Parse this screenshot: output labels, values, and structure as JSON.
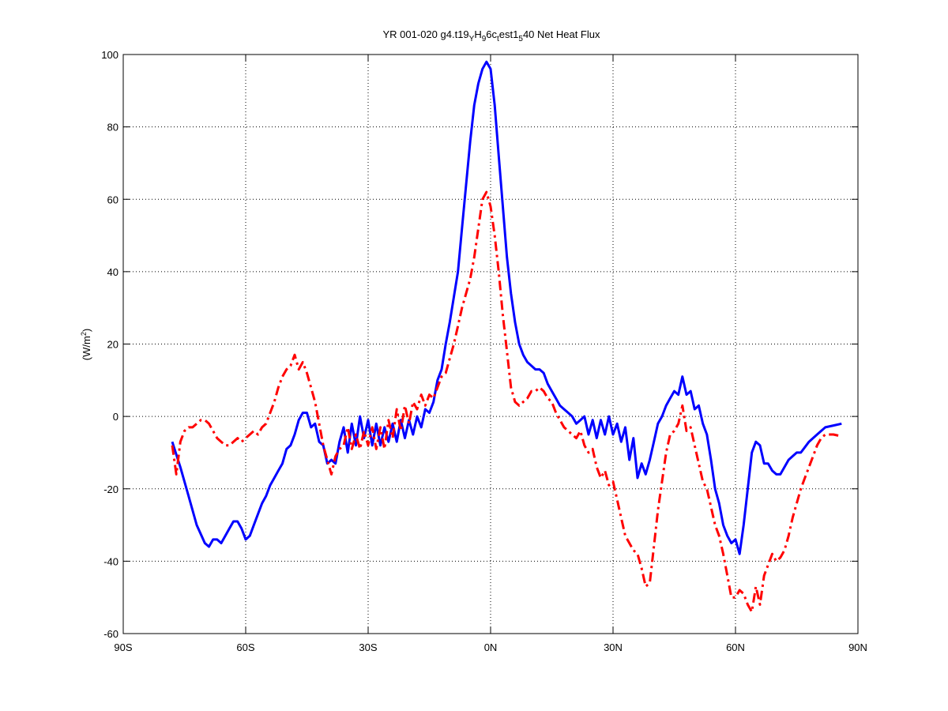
{
  "chart_data": {
    "type": "line",
    "title": "YR 001-020 g4.t19_YH_96c_test1_540    Net Heat Flux",
    "title_parts": {
      "prefix": "YR 001-020 g4.t19",
      "sub1": "Y",
      "mid1": "H",
      "sub2": "9",
      "mid2": "6c",
      "sub3": "t",
      "mid3": "est1",
      "sub4": "5",
      "suffix": "40    Net Heat Flux"
    },
    "xlabel": "",
    "ylabel": "(W/m²)",
    "ylabel_parts": {
      "prefix": "(W/m",
      "sup": "2",
      "suffix": ")"
    },
    "xlim": [
      -90,
      90
    ],
    "ylim": [
      -60,
      100
    ],
    "grid": true,
    "x_ticks": [
      -90,
      -60,
      -30,
      0,
      30,
      60,
      90
    ],
    "x_tick_labels": [
      "90S",
      "60S",
      "30S",
      "0N",
      "30N",
      "60N",
      "90N"
    ],
    "y_ticks": [
      -60,
      -40,
      -20,
      0,
      20,
      40,
      60,
      80,
      100
    ],
    "y_tick_labels": [
      "-60",
      "-40",
      "-20",
      "0",
      "20",
      "40",
      "60",
      "80",
      "100"
    ],
    "series": [
      {
        "color": "#0000ff",
        "style": "solid",
        "points": [
          [
            -78,
            -7
          ],
          [
            -76,
            -14
          ],
          [
            -74,
            -22
          ],
          [
            -72,
            -30
          ],
          [
            -70,
            -35
          ],
          [
            -69,
            -36
          ],
          [
            -68,
            -34
          ],
          [
            -67,
            -34
          ],
          [
            -66,
            -35
          ],
          [
            -65,
            -33
          ],
          [
            -64,
            -31
          ],
          [
            -63,
            -29
          ],
          [
            -62,
            -29
          ],
          [
            -61,
            -31
          ],
          [
            -60,
            -34
          ],
          [
            -59,
            -33
          ],
          [
            -58,
            -30
          ],
          [
            -57,
            -27
          ],
          [
            -56,
            -24
          ],
          [
            -55,
            -22
          ],
          [
            -54,
            -19
          ],
          [
            -53,
            -17
          ],
          [
            -52,
            -15
          ],
          [
            -51,
            -13
          ],
          [
            -50,
            -9
          ],
          [
            -49,
            -8
          ],
          [
            -48,
            -5
          ],
          [
            -47,
            -1
          ],
          [
            -46,
            1
          ],
          [
            -45,
            1
          ],
          [
            -44,
            -3
          ],
          [
            -43,
            -2
          ],
          [
            -42,
            -7
          ],
          [
            -41,
            -8
          ],
          [
            -40,
            -13
          ],
          [
            -39,
            -12
          ],
          [
            -38,
            -13
          ],
          [
            -37,
            -7
          ],
          [
            -36,
            -3
          ],
          [
            -35,
            -10
          ],
          [
            -34,
            -2
          ],
          [
            -33,
            -8
          ],
          [
            -32,
            0
          ],
          [
            -31,
            -6
          ],
          [
            -30,
            -1
          ],
          [
            -29,
            -8
          ],
          [
            -28,
            -2
          ],
          [
            -27,
            -8
          ],
          [
            -26,
            -3
          ],
          [
            -25,
            -7
          ],
          [
            -24,
            -2
          ],
          [
            -23,
            -7
          ],
          [
            -22,
            -1
          ],
          [
            -21,
            -6
          ],
          [
            -20,
            -1
          ],
          [
            -19,
            -5
          ],
          [
            -18,
            0
          ],
          [
            -17,
            -3
          ],
          [
            -16,
            2
          ],
          [
            -15,
            1
          ],
          [
            -14,
            4
          ],
          [
            -13,
            10
          ],
          [
            -12,
            13
          ],
          [
            -11,
            20
          ],
          [
            -10,
            26
          ],
          [
            -9,
            33
          ],
          [
            -8,
            40
          ],
          [
            -7,
            52
          ],
          [
            -6,
            64
          ],
          [
            -5,
            76
          ],
          [
            -4,
            86
          ],
          [
            -3,
            92
          ],
          [
            -2,
            96
          ],
          [
            -1,
            98
          ],
          [
            0,
            96
          ],
          [
            1,
            86
          ],
          [
            2,
            72
          ],
          [
            3,
            58
          ],
          [
            4,
            44
          ],
          [
            5,
            34
          ],
          [
            6,
            26
          ],
          [
            7,
            20
          ],
          [
            8,
            17
          ],
          [
            9,
            15
          ],
          [
            10,
            14
          ],
          [
            11,
            13
          ],
          [
            12,
            13
          ],
          [
            13,
            12
          ],
          [
            14,
            9
          ],
          [
            15,
            7
          ],
          [
            16,
            5
          ],
          [
            17,
            3
          ],
          [
            18,
            2
          ],
          [
            19,
            1
          ],
          [
            20,
            0
          ],
          [
            21,
            -2
          ],
          [
            22,
            -1
          ],
          [
            23,
            0
          ],
          [
            24,
            -5
          ],
          [
            25,
            -1
          ],
          [
            26,
            -6
          ],
          [
            27,
            -1
          ],
          [
            28,
            -5
          ],
          [
            29,
            0
          ],
          [
            30,
            -5
          ],
          [
            31,
            -2
          ],
          [
            32,
            -7
          ],
          [
            33,
            -3
          ],
          [
            34,
            -12
          ],
          [
            35,
            -6
          ],
          [
            36,
            -17
          ],
          [
            37,
            -13
          ],
          [
            38,
            -16
          ],
          [
            39,
            -12
          ],
          [
            40,
            -7
          ],
          [
            41,
            -2
          ],
          [
            42,
            0
          ],
          [
            43,
            3
          ],
          [
            44,
            5
          ],
          [
            45,
            7
          ],
          [
            46,
            6
          ],
          [
            47,
            11
          ],
          [
            48,
            6
          ],
          [
            49,
            7
          ],
          [
            50,
            2
          ],
          [
            51,
            3
          ],
          [
            52,
            -2
          ],
          [
            53,
            -5
          ],
          [
            54,
            -12
          ],
          [
            55,
            -20
          ],
          [
            56,
            -24
          ],
          [
            57,
            -30
          ],
          [
            58,
            -33
          ],
          [
            59,
            -35
          ],
          [
            60,
            -34
          ],
          [
            61,
            -38
          ],
          [
            62,
            -30
          ],
          [
            63,
            -20
          ],
          [
            64,
            -10
          ],
          [
            65,
            -7
          ],
          [
            66,
            -8
          ],
          [
            67,
            -13
          ],
          [
            68,
            -13
          ],
          [
            69,
            -15
          ],
          [
            70,
            -16
          ],
          [
            71,
            -16
          ],
          [
            72,
            -14
          ],
          [
            73,
            -12
          ],
          [
            74,
            -11
          ],
          [
            75,
            -10
          ],
          [
            76,
            -10
          ],
          [
            78,
            -7
          ],
          [
            80,
            -5
          ],
          [
            82,
            -3
          ],
          [
            84,
            -2.5
          ],
          [
            86,
            -2
          ]
        ]
      },
      {
        "color": "#ff0000",
        "style": "dash-dot",
        "points": [
          [
            -78,
            -8
          ],
          [
            -77,
            -16
          ],
          [
            -76,
            -7
          ],
          [
            -75,
            -4
          ],
          [
            -74,
            -3
          ],
          [
            -73,
            -3
          ],
          [
            -72,
            -2
          ],
          [
            -71,
            -1
          ],
          [
            -70,
            -1
          ],
          [
            -69,
            -2
          ],
          [
            -68,
            -4
          ],
          [
            -67,
            -6
          ],
          [
            -66,
            -7
          ],
          [
            -65,
            -8
          ],
          [
            -64,
            -8
          ],
          [
            -63,
            -7
          ],
          [
            -62,
            -6
          ],
          [
            -61,
            -7
          ],
          [
            -60,
            -6
          ],
          [
            -59,
            -5
          ],
          [
            -58,
            -4
          ],
          [
            -57,
            -5
          ],
          [
            -56,
            -3
          ],
          [
            -55,
            -2
          ],
          [
            -54,
            1
          ],
          [
            -53,
            4
          ],
          [
            -52,
            8
          ],
          [
            -51,
            11
          ],
          [
            -50,
            13
          ],
          [
            -49,
            14
          ],
          [
            -48,
            17
          ],
          [
            -47,
            13
          ],
          [
            -46,
            15
          ],
          [
            -45,
            12
          ],
          [
            -44,
            8
          ],
          [
            -43,
            4
          ],
          [
            -42,
            -2
          ],
          [
            -41,
            -8
          ],
          [
            -40,
            -12
          ],
          [
            -39,
            -16
          ],
          [
            -38,
            -11
          ],
          [
            -37,
            -9
          ],
          [
            -36,
            -8
          ],
          [
            -35,
            -3
          ],
          [
            -34,
            -9
          ],
          [
            -33,
            -5
          ],
          [
            -32,
            -9
          ],
          [
            -31,
            -4
          ],
          [
            -30,
            -8
          ],
          [
            -29,
            -3
          ],
          [
            -28,
            -9
          ],
          [
            -27,
            -3
          ],
          [
            -26,
            -9
          ],
          [
            -25,
            -1
          ],
          [
            -24,
            -6
          ],
          [
            -23,
            2
          ],
          [
            -22,
            -4
          ],
          [
            -21,
            3
          ],
          [
            -20,
            -2
          ],
          [
            -19,
            4
          ],
          [
            -18,
            2
          ],
          [
            -17,
            6
          ],
          [
            -16,
            3
          ],
          [
            -15,
            6
          ],
          [
            -14,
            5
          ],
          [
            -13,
            8
          ],
          [
            -12,
            11
          ],
          [
            -11,
            12
          ],
          [
            -10,
            16
          ],
          [
            -9,
            20
          ],
          [
            -8,
            25
          ],
          [
            -7,
            30
          ],
          [
            -6,
            34
          ],
          [
            -5,
            38
          ],
          [
            -4,
            44
          ],
          [
            -3,
            52
          ],
          [
            -2,
            60
          ],
          [
            -1,
            62
          ],
          [
            0,
            58
          ],
          [
            1,
            50
          ],
          [
            2,
            40
          ],
          [
            3,
            28
          ],
          [
            4,
            18
          ],
          [
            5,
            8
          ],
          [
            6,
            4
          ],
          [
            7,
            3
          ],
          [
            8,
            4
          ],
          [
            9,
            5
          ],
          [
            10,
            7
          ],
          [
            11,
            7
          ],
          [
            12,
            8
          ],
          [
            13,
            7
          ],
          [
            14,
            5
          ],
          [
            15,
            4
          ],
          [
            16,
            1
          ],
          [
            17,
            -1
          ],
          [
            18,
            -3
          ],
          [
            19,
            -4
          ],
          [
            20,
            -5
          ],
          [
            21,
            -6
          ],
          [
            22,
            -4
          ],
          [
            23,
            -8
          ],
          [
            24,
            -10
          ],
          [
            25,
            -9
          ],
          [
            26,
            -14
          ],
          [
            27,
            -17
          ],
          [
            28,
            -15
          ],
          [
            29,
            -19
          ],
          [
            30,
            -18
          ],
          [
            31,
            -23
          ],
          [
            32,
            -28
          ],
          [
            33,
            -33
          ],
          [
            34,
            -35
          ],
          [
            35,
            -37
          ],
          [
            36,
            -38
          ],
          [
            37,
            -42
          ],
          [
            38,
            -47
          ],
          [
            39,
            -46
          ],
          [
            40,
            -36
          ],
          [
            41,
            -26
          ],
          [
            42,
            -18
          ],
          [
            43,
            -10
          ],
          [
            44,
            -5
          ],
          [
            45,
            -4
          ],
          [
            46,
            -2
          ],
          [
            47,
            3
          ],
          [
            48,
            -4
          ],
          [
            49,
            -3
          ],
          [
            50,
            -8
          ],
          [
            51,
            -13
          ],
          [
            52,
            -18
          ],
          [
            53,
            -20
          ],
          [
            54,
            -25
          ],
          [
            55,
            -30
          ],
          [
            56,
            -33
          ],
          [
            57,
            -38
          ],
          [
            58,
            -44
          ],
          [
            59,
            -50
          ],
          [
            60,
            -50
          ],
          [
            61,
            -48
          ],
          [
            62,
            -49
          ],
          [
            63,
            -52
          ],
          [
            64,
            -54
          ],
          [
            65,
            -47
          ],
          [
            66,
            -52
          ],
          [
            67,
            -44
          ],
          [
            68,
            -41
          ],
          [
            69,
            -38
          ],
          [
            70,
            -40
          ],
          [
            71,
            -39
          ],
          [
            72,
            -37
          ],
          [
            73,
            -33
          ],
          [
            74,
            -28
          ],
          [
            75,
            -24
          ],
          [
            76,
            -20
          ],
          [
            77,
            -17
          ],
          [
            78,
            -14
          ],
          [
            79,
            -11
          ],
          [
            80,
            -8
          ],
          [
            81,
            -6
          ],
          [
            82,
            -5
          ],
          [
            84,
            -5
          ],
          [
            86,
            -5.5
          ]
        ]
      }
    ]
  }
}
